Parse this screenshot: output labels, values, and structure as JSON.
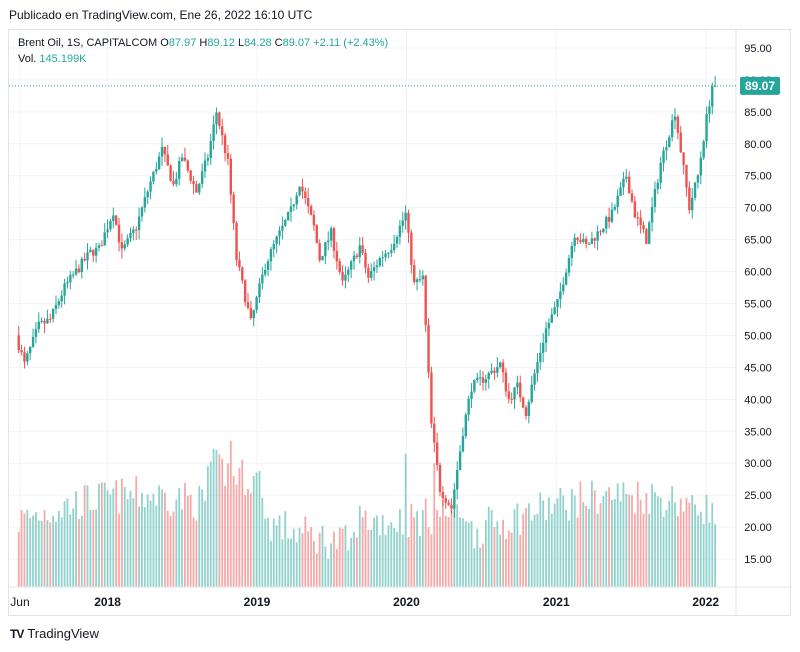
{
  "header": {
    "published": "Publicado en TradingView.com, Ene 26, 2022 16:10 UTC"
  },
  "legend": {
    "symbol": "Brent Oil, 1S, CAPITALCOM",
    "open_label": "O",
    "open": "87.97",
    "high_label": "H",
    "high": "89.12",
    "low_label": "L",
    "low": "84.28",
    "close_label": "C",
    "close": "89.07",
    "change": "+2.11 (+2.43%)",
    "vol_label": "Vol.",
    "vol": "145.199K"
  },
  "footer": {
    "logo": "TV",
    "brand": "TradingView"
  },
  "colors": {
    "up": "#26a69a",
    "down": "#ef5350",
    "grid": "#f0f3fa",
    "axis_text": "#131722",
    "last_price_bg": "#26a69a"
  },
  "chart_data": {
    "type": "candlestick",
    "timeframe": "1S",
    "last_price": 89.07,
    "ylim": [
      12.5,
      97.5
    ],
    "y_ticks": [
      15,
      20,
      25,
      30,
      35,
      40,
      45,
      50,
      55,
      60,
      65,
      70,
      75,
      80,
      85,
      90,
      95
    ],
    "x_labels": [
      "Jun",
      "2018",
      "2019",
      "2020",
      "2021",
      "2022"
    ],
    "series": [
      {
        "name": "price",
        "keypoints": [
          [
            "2017-05-29",
            50
          ],
          [
            "2017-06-19",
            45.5
          ],
          [
            "2017-07-24",
            51.5
          ],
          [
            "2017-08-21",
            52.5
          ],
          [
            "2017-09-25",
            57.5
          ],
          [
            "2017-10-23",
            60
          ],
          [
            "2017-11-27",
            63
          ],
          [
            "2017-12-18",
            63.5
          ],
          [
            "2018-01-22",
            69.5
          ],
          [
            "2018-02-12",
            63
          ],
          [
            "2018-03-19",
            67
          ],
          [
            "2018-04-23",
            74
          ],
          [
            "2018-05-21",
            79
          ],
          [
            "2018-06-18",
            73.5
          ],
          [
            "2018-07-09",
            78
          ],
          [
            "2018-08-13",
            72.5
          ],
          [
            "2018-09-10",
            78
          ],
          [
            "2018-10-01",
            85
          ],
          [
            "2018-10-29",
            77
          ],
          [
            "2018-11-19",
            62
          ],
          [
            "2018-12-24",
            52
          ],
          [
            "2019-01-28",
            61
          ],
          [
            "2019-02-25",
            65
          ],
          [
            "2019-04-01",
            69.5
          ],
          [
            "2019-04-22",
            74
          ],
          [
            "2019-05-27",
            67
          ],
          [
            "2019-06-10",
            62
          ],
          [
            "2019-07-08",
            66
          ],
          [
            "2019-08-05",
            58
          ],
          [
            "2019-09-16",
            64
          ],
          [
            "2019-10-07",
            59
          ],
          [
            "2019-11-04",
            62
          ],
          [
            "2019-12-02",
            64
          ],
          [
            "2020-01-06",
            69
          ],
          [
            "2020-01-27",
            58
          ],
          [
            "2020-02-17",
            59
          ],
          [
            "2020-03-09",
            36
          ],
          [
            "2020-03-30",
            26
          ],
          [
            "2020-04-27",
            23
          ],
          [
            "2020-05-25",
            35
          ],
          [
            "2020-06-15",
            42
          ],
          [
            "2020-07-20",
            43.5
          ],
          [
            "2020-08-24",
            45.5
          ],
          [
            "2020-09-14",
            40
          ],
          [
            "2020-10-05",
            42
          ],
          [
            "2020-10-26",
            38
          ],
          [
            "2020-11-16",
            44
          ],
          [
            "2020-12-14",
            51
          ],
          [
            "2021-01-11",
            55
          ],
          [
            "2021-02-22",
            66
          ],
          [
            "2021-03-22",
            64
          ],
          [
            "2021-04-19",
            66
          ],
          [
            "2021-05-24",
            69
          ],
          [
            "2021-06-28",
            75
          ],
          [
            "2021-07-19",
            69
          ],
          [
            "2021-08-16",
            65
          ],
          [
            "2021-09-20",
            77
          ],
          [
            "2021-10-25",
            85
          ],
          [
            "2021-11-29",
            70
          ],
          [
            "2021-12-20",
            75
          ],
          [
            "2022-01-10",
            84
          ],
          [
            "2022-01-24",
            89.07
          ]
        ]
      }
    ],
    "volume": {
      "last": "145.199K",
      "peaks": [
        [
          "2018-10-29",
          33.5
        ],
        [
          "2019-12-30",
          31.5
        ],
        [
          "2020-03-09",
          30
        ],
        [
          "2021-11-29",
          25
        ]
      ]
    }
  }
}
